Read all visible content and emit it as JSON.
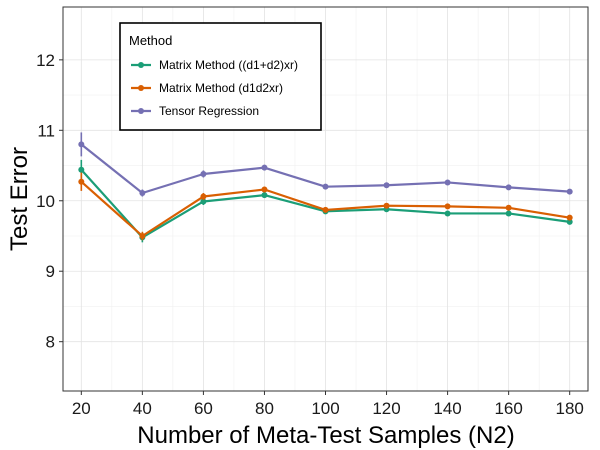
{
  "chart_data": {
    "type": "line",
    "title": "",
    "xlabel": "Number of Meta-Test Samples (N2)",
    "ylabel": "Test Error",
    "x": [
      20,
      40,
      60,
      80,
      100,
      120,
      140,
      160,
      180
    ],
    "xlim": [
      14,
      186
    ],
    "ylim": [
      7.3,
      12.75
    ],
    "xticks": [
      20,
      40,
      60,
      80,
      100,
      120,
      140,
      160,
      180
    ],
    "yticks": [
      8,
      9,
      10,
      11,
      12
    ],
    "grid": true,
    "legend_title": "Method",
    "legend_position": "top-left",
    "series": [
      {
        "name": "Matrix Method ((d1+d2)xr)",
        "color": "#1b9e77",
        "values": [
          10.44,
          9.48,
          9.99,
          10.08,
          9.85,
          9.88,
          9.82,
          9.82,
          9.7
        ],
        "errors": [
          0.14,
          0.07,
          0.05,
          0.04,
          0.03,
          0.03,
          0.03,
          0.03,
          0.02
        ]
      },
      {
        "name": "Matrix Method (d1d2xr)",
        "color": "#d95f02",
        "values": [
          10.27,
          9.5,
          10.06,
          10.16,
          9.87,
          9.93,
          9.92,
          9.9,
          9.76
        ],
        "errors": [
          0.13,
          0.06,
          0.05,
          0.04,
          0.03,
          0.03,
          0.03,
          0.03,
          0.02
        ]
      },
      {
        "name": "Tensor Regression",
        "color": "#7570b3",
        "values": [
          10.8,
          10.11,
          10.38,
          10.47,
          10.2,
          10.22,
          10.26,
          10.19,
          10.13
        ],
        "errors": [
          0.17,
          0.05,
          0.05,
          0.04,
          0.03,
          0.03,
          0.03,
          0.03,
          0.02
        ]
      }
    ]
  }
}
